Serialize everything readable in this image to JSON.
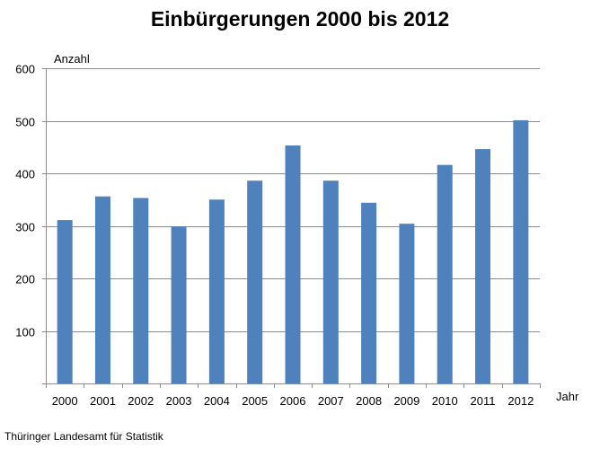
{
  "chart_data": {
    "type": "bar",
    "title": "Einbürgerungen 2000 bis 2012",
    "xlabel": "Jahr",
    "ylabel": "Anzahl",
    "categories": [
      "2000",
      "2001",
      "2002",
      "2003",
      "2004",
      "2005",
      "2006",
      "2007",
      "2008",
      "2009",
      "2010",
      "2011",
      "2012"
    ],
    "values": [
      311,
      356,
      353,
      299,
      350,
      386,
      453,
      386,
      344,
      304,
      416,
      446,
      501
    ],
    "ylim": [
      0,
      600
    ],
    "yticks": [
      100,
      200,
      300,
      400,
      500,
      600
    ],
    "grid": true,
    "legend": "none",
    "bar_color": "#4f81bd"
  },
  "footer": "Thüringer Landesamt für Statistik"
}
